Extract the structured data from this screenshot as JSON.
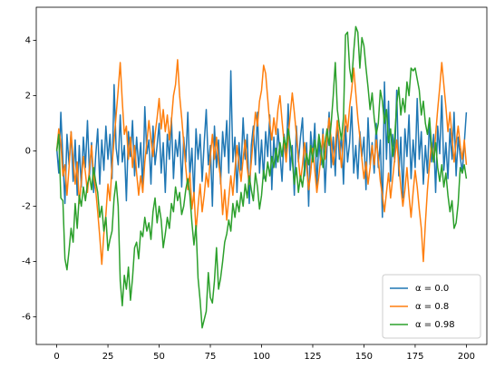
{
  "chart_data": {
    "type": "line",
    "x": [
      0,
      1,
      2,
      3,
      4,
      5,
      6,
      7,
      8,
      9,
      10,
      11,
      12,
      13,
      14,
      15,
      16,
      17,
      18,
      19,
      20,
      21,
      22,
      23,
      24,
      25,
      26,
      27,
      28,
      29,
      30,
      31,
      32,
      33,
      34,
      35,
      36,
      37,
      38,
      39,
      40,
      41,
      42,
      43,
      44,
      45,
      46,
      47,
      48,
      49,
      50,
      51,
      52,
      53,
      54,
      55,
      56,
      57,
      58,
      59,
      60,
      61,
      62,
      63,
      64,
      65,
      66,
      67,
      68,
      69,
      70,
      71,
      72,
      73,
      74,
      75,
      76,
      77,
      78,
      79,
      80,
      81,
      82,
      83,
      84,
      85,
      86,
      87,
      88,
      89,
      90,
      91,
      92,
      93,
      94,
      95,
      96,
      97,
      98,
      99,
      100,
      101,
      102,
      103,
      104,
      105,
      106,
      107,
      108,
      109,
      110,
      111,
      112,
      113,
      114,
      115,
      116,
      117,
      118,
      119,
      120,
      121,
      122,
      123,
      124,
      125,
      126,
      127,
      128,
      129,
      130,
      131,
      132,
      133,
      134,
      135,
      136,
      137,
      138,
      139,
      140,
      141,
      142,
      143,
      144,
      145,
      146,
      147,
      148,
      149,
      150,
      151,
      152,
      153,
      154,
      155,
      156,
      157,
      158,
      159,
      160,
      161,
      162,
      163,
      164,
      165,
      166,
      167,
      168,
      169,
      170,
      171,
      172,
      173,
      174,
      175,
      176,
      177,
      178,
      179,
      180,
      181,
      182,
      183,
      184,
      185,
      186,
      187,
      188,
      189,
      190,
      191,
      192,
      193,
      194,
      195,
      196,
      197,
      198,
      199,
      200
    ],
    "series": [
      {
        "name": "α = 0.0",
        "color": "#1f77b4",
        "values": [
          0.1,
          -0.8,
          1.4,
          -0.3,
          -1.9,
          0.6,
          -0.5,
          0.7,
          -1.1,
          0.4,
          -1.6,
          0.2,
          -1.3,
          0.5,
          -0.6,
          1.1,
          -0.9,
          0.3,
          -1.5,
          -0.2,
          0.8,
          -1.2,
          0.4,
          -0.7,
          0.9,
          -0.3,
          0.6,
          -1.0,
          2.4,
          0.1,
          -0.5,
          1.3,
          -0.4,
          0.2,
          -1.8,
          0.7,
          -0.2,
          1.1,
          -0.9,
          0.5,
          -0.6,
          0.3,
          -1.4,
          1.6,
          -0.1,
          0.4,
          -1.2,
          0.9,
          -0.5,
          0.2,
          1.0,
          -0.8,
          0.3,
          -1.5,
          0.6,
          -0.3,
          1.2,
          -1.0,
          0.4,
          -0.2,
          0.7,
          -1.3,
          0.5,
          -0.4,
          1.4,
          -0.9,
          0.1,
          -1.7,
          0.8,
          -0.3,
          0.6,
          -1.1,
          0.3,
          1.5,
          -0.5,
          0.2,
          -2.0,
          0.9,
          -0.6,
          0.4,
          -1.2,
          0.7,
          -0.2,
          1.1,
          -0.8,
          2.9,
          -0.4,
          0.5,
          -1.5,
          0.3,
          -0.7,
          1.2,
          -0.3,
          0.6,
          -1.9,
          0.2,
          0.9,
          -0.5,
          1.4,
          -0.8,
          0.4,
          -1.0,
          0.7,
          -0.2,
          1.3,
          -1.4,
          0.5,
          -0.6,
          0.8,
          -0.1,
          -1.1,
          0.6,
          -0.3,
          1.7,
          -0.7,
          0.2,
          -1.6,
          0.9,
          -0.4,
          0.5,
          1.2,
          -0.9,
          0.3,
          -2.0,
          0.7,
          -0.2,
          1.0,
          -1.3,
          0.4,
          -0.5,
          0.8,
          -1.5,
          0.2,
          1.4,
          -0.6,
          0.5,
          -0.9,
          1.1,
          -0.3,
          0.6,
          -1.2,
          0.9,
          -0.4,
          0.3,
          1.6,
          -0.8,
          0.2,
          -1.0,
          0.7,
          -0.2,
          0.5,
          -1.4,
          1.2,
          -0.5,
          0.3,
          -0.8,
          1.0,
          -0.6,
          0.4,
          -2.4,
          2.5,
          -0.3,
          1.8,
          -1.1,
          0.6,
          -0.4,
          2.2,
          -0.9,
          0.5,
          -1.7,
          0.8,
          -0.2,
          1.3,
          -1.0,
          0.4,
          -0.6,
          1.9,
          -0.3,
          0.7,
          -1.2,
          0.2,
          -0.8,
          1.1,
          -0.4,
          0.6,
          -1.5,
          0.9,
          -0.1,
          2.0,
          -0.7,
          0.3,
          -1.0,
          0.8,
          -0.3,
          1.4,
          -0.9,
          0.5,
          -0.2,
          -0.8,
          0.3,
          1.4
        ]
      },
      {
        "name": "α = 0.8",
        "color": "#ff7f0e",
        "values": [
          0.0,
          0.8,
          0.3,
          -0.9,
          -0.5,
          -1.6,
          -0.6,
          0.7,
          -0.3,
          -1.2,
          -0.4,
          -1.9,
          -1.1,
          -0.2,
          -0.8,
          -1.5,
          -0.6,
          0.2,
          -0.9,
          -1.4,
          -2.2,
          -3.1,
          -4.1,
          -3.0,
          -2.3,
          -1.2,
          -1.8,
          -0.5,
          0.4,
          1.3,
          2.2,
          3.2,
          1.8,
          0.6,
          0.9,
          -0.3,
          0.5,
          -0.6,
          0.2,
          -0.8,
          -1.6,
          -0.9,
          -1.5,
          -0.4,
          0.3,
          1.1,
          0.4,
          -0.2,
          0.6,
          1.2,
          1.9,
          0.8,
          1.5,
          0.7,
          1.3,
          0.4,
          1.1,
          2.0,
          2.4,
          3.3,
          2.0,
          1.2,
          0.3,
          -0.6,
          -1.4,
          -0.8,
          -2.1,
          -1.5,
          -2.9,
          -2.0,
          -1.2,
          -2.2,
          -1.6,
          -0.8,
          -1.3,
          -0.2,
          0.6,
          -0.3,
          0.5,
          -0.4,
          -1.0,
          -2.3,
          -1.4,
          -2.5,
          -1.7,
          -0.9,
          -1.6,
          -0.7,
          0.2,
          -0.5,
          -1.1,
          -0.3,
          0.4,
          -0.6,
          -1.2,
          -0.4,
          0.5,
          1.4,
          0.9,
          1.8,
          2.2,
          3.1,
          2.8,
          1.9,
          1.0,
          0.4,
          1.2,
          0.6,
          1.5,
          2.0,
          1.1,
          0.3,
          -0.4,
          0.5,
          1.3,
          2.1,
          1.4,
          0.6,
          -0.3,
          -1.1,
          -0.5,
          0.3,
          -0.6,
          -1.4,
          -0.8,
          0.1,
          -0.7,
          -1.5,
          -0.9,
          -0.2,
          0.6,
          -0.3,
          0.5,
          1.2,
          0.4,
          -0.5,
          0.2,
          1.1,
          0.3,
          -0.6,
          0.4,
          1.3,
          0.7,
          1.6,
          2.2,
          3.0,
          2.1,
          1.2,
          0.5,
          -0.3,
          -1.0,
          -0.4,
          -1.2,
          -0.6,
          0.2,
          -0.5,
          0.4,
          -0.3,
          -1.1,
          -1.6,
          -2.2,
          -1.5,
          -0.8,
          -1.7,
          -1.0,
          -0.3,
          0.4,
          -0.5,
          -1.3,
          -2.0,
          -1.4,
          -0.6,
          -1.6,
          -2.4,
          -1.5,
          -0.7,
          -1.3,
          -2.1,
          -2.8,
          -4.0,
          -2.6,
          -1.4,
          -0.5,
          0.3,
          -0.4,
          0.6,
          1.5,
          2.3,
          3.2,
          2.4,
          1.6,
          0.7,
          1.4,
          0.5,
          -0.4,
          0.3,
          0.9,
          0.2,
          -0.3,
          0.4,
          -0.5
        ]
      },
      {
        "name": "α = 0.98",
        "color": "#2ca02c",
        "values": [
          0.0,
          0.6,
          -1.7,
          -1.8,
          -3.9,
          -4.3,
          -3.6,
          -2.8,
          -3.3,
          -1.9,
          -2.8,
          -1.6,
          -2.0,
          -1.3,
          -1.8,
          -1.2,
          -0.9,
          -1.4,
          -0.6,
          -1.1,
          -1.5,
          -2.4,
          -2.0,
          -2.9,
          -2.4,
          -3.6,
          -3.2,
          -2.9,
          -1.7,
          -1.1,
          -2.0,
          -4.7,
          -5.6,
          -4.5,
          -5.0,
          -4.2,
          -5.4,
          -4.6,
          -3.5,
          -3.3,
          -3.9,
          -2.9,
          -3.1,
          -2.4,
          -2.9,
          -2.6,
          -3.2,
          -2.2,
          -1.7,
          -2.6,
          -2.0,
          -2.5,
          -3.5,
          -3.0,
          -2.4,
          -2.8,
          -1.9,
          -2.2,
          -1.3,
          -1.8,
          -1.5,
          -2.3,
          -2.0,
          -1.4,
          -1.0,
          -1.6,
          -2.6,
          -3.4,
          -2.7,
          -4.6,
          -5.4,
          -6.4,
          -6.1,
          -5.8,
          -4.4,
          -5.3,
          -5.5,
          -4.7,
          -3.5,
          -5.0,
          -4.6,
          -4.0,
          -3.3,
          -3.0,
          -2.5,
          -2.9,
          -1.9,
          -2.4,
          -1.8,
          -2.2,
          -1.5,
          -2.0,
          -1.2,
          -1.7,
          -0.9,
          -1.4,
          -1.8,
          -0.8,
          -1.3,
          -2.1,
          -1.6,
          -0.7,
          -1.1,
          -0.4,
          -0.9,
          -0.2,
          -0.6,
          0.1,
          -0.4,
          0.3,
          -0.2,
          0.5,
          0.1,
          0.8,
          0.3,
          -0.3,
          -1.2,
          -0.6,
          -1.5,
          -0.9,
          -1.3,
          -0.6,
          -0.1,
          -0.5,
          0.2,
          -0.4,
          0.4,
          -0.2,
          0.6,
          0.1,
          -0.6,
          0.3,
          0.8,
          0.2,
          1.0,
          2.0,
          3.2,
          1.5,
          0.9,
          0.4,
          1.2,
          4.2,
          4.3,
          3.0,
          2.5,
          3.6,
          4.5,
          4.3,
          3.0,
          4.1,
          3.8,
          3.0,
          2.3,
          1.5,
          2.1,
          1.2,
          0.6,
          1.0,
          2.2,
          1.8,
          1.0,
          1.5,
          0.3,
          0.8,
          -0.2,
          0.5,
          1.7,
          2.3,
          1.3,
          1.9,
          1.4,
          2.5,
          2.0,
          3.0,
          2.9,
          3.0,
          2.6,
          2.2,
          1.3,
          1.8,
          1.0,
          0.6,
          1.2,
          0.2,
          -0.4,
          0.3,
          -0.6,
          -1.1,
          -0.5,
          -1.3,
          -0.8,
          -1.6,
          -2.2,
          -1.8,
          -2.8,
          -2.6,
          -1.9,
          -0.6,
          -0.8,
          -0.5,
          -1.0
        ]
      }
    ],
    "xlim": [
      -10,
      210
    ],
    "ylim": [
      -7.0,
      5.2
    ],
    "xticks": [
      0,
      25,
      50,
      75,
      100,
      125,
      150,
      175,
      200
    ],
    "yticks": [
      -6,
      -4,
      -2,
      0,
      2,
      4
    ],
    "grid": false,
    "legend": "lower right"
  }
}
